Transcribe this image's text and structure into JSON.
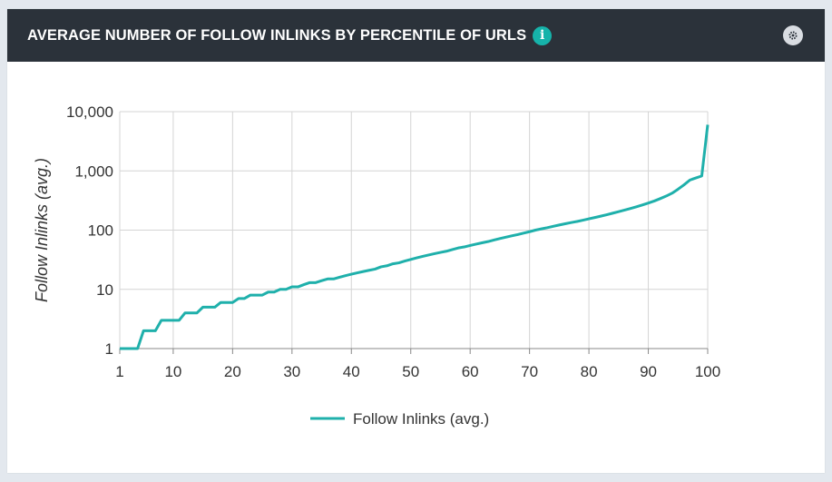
{
  "header": {
    "title": "AVERAGE NUMBER OF FOLLOW INLINKS BY PERCENTILE OF URLS",
    "info_icon": "info-icon",
    "settings_icon": "gear-icon"
  },
  "colors": {
    "header_bg": "#2b323a",
    "accent": "#16b3aa",
    "series": "#1fb0ab",
    "grid": "#d4d4d4"
  },
  "chart_data": {
    "type": "line",
    "title": "",
    "xlabel": "",
    "ylabel": "Follow Inlinks (avg.)",
    "xlim": [
      1,
      100
    ],
    "ylim": [
      1,
      10000
    ],
    "yscale": "log",
    "grid": true,
    "legend_position": "bottom-center",
    "x_ticks": [
      1,
      10,
      20,
      30,
      40,
      50,
      60,
      70,
      80,
      90,
      100
    ],
    "y_ticks": [
      1,
      10,
      100,
      1000,
      10000
    ],
    "y_tick_labels": [
      "1",
      "10",
      "100",
      "1,000",
      "10,000"
    ],
    "series": [
      {
        "name": "Follow Inlinks (avg.)",
        "color": "#1fb0ab",
        "x": [
          1,
          2,
          3,
          4,
          5,
          6,
          7,
          8,
          9,
          10,
          11,
          12,
          13,
          14,
          15,
          16,
          17,
          18,
          19,
          20,
          21,
          22,
          23,
          24,
          25,
          26,
          27,
          28,
          29,
          30,
          31,
          32,
          33,
          34,
          35,
          36,
          37,
          38,
          39,
          40,
          41,
          42,
          43,
          44,
          45,
          46,
          47,
          48,
          49,
          50,
          51,
          52,
          53,
          54,
          55,
          56,
          57,
          58,
          59,
          60,
          61,
          62,
          63,
          64,
          65,
          66,
          67,
          68,
          69,
          70,
          71,
          72,
          73,
          74,
          75,
          76,
          77,
          78,
          79,
          80,
          81,
          82,
          83,
          84,
          85,
          86,
          87,
          88,
          89,
          90,
          91,
          92,
          93,
          94,
          95,
          96,
          97,
          98,
          99,
          100
        ],
        "y": [
          1,
          1,
          1,
          1,
          2,
          2,
          2,
          3,
          3,
          3,
          3,
          4,
          4,
          4,
          5,
          5,
          5,
          6,
          6,
          6,
          7,
          7,
          8,
          8,
          8,
          9,
          9,
          10,
          10,
          11,
          11,
          12,
          13,
          13,
          14,
          15,
          15,
          16,
          17,
          18,
          19,
          20,
          21,
          22,
          24,
          25,
          27,
          28,
          30,
          32,
          34,
          36,
          38,
          40,
          42,
          44,
          47,
          50,
          52,
          55,
          58,
          61,
          64,
          68,
          72,
          76,
          80,
          84,
          89,
          94,
          100,
          105,
          110,
          116,
          122,
          128,
          134,
          140,
          147,
          155,
          163,
          172,
          182,
          193,
          205,
          218,
          232,
          248,
          266,
          286,
          310,
          340,
          375,
          420,
          490,
          580,
          700,
          760,
          820,
          6000
        ]
      }
    ]
  }
}
